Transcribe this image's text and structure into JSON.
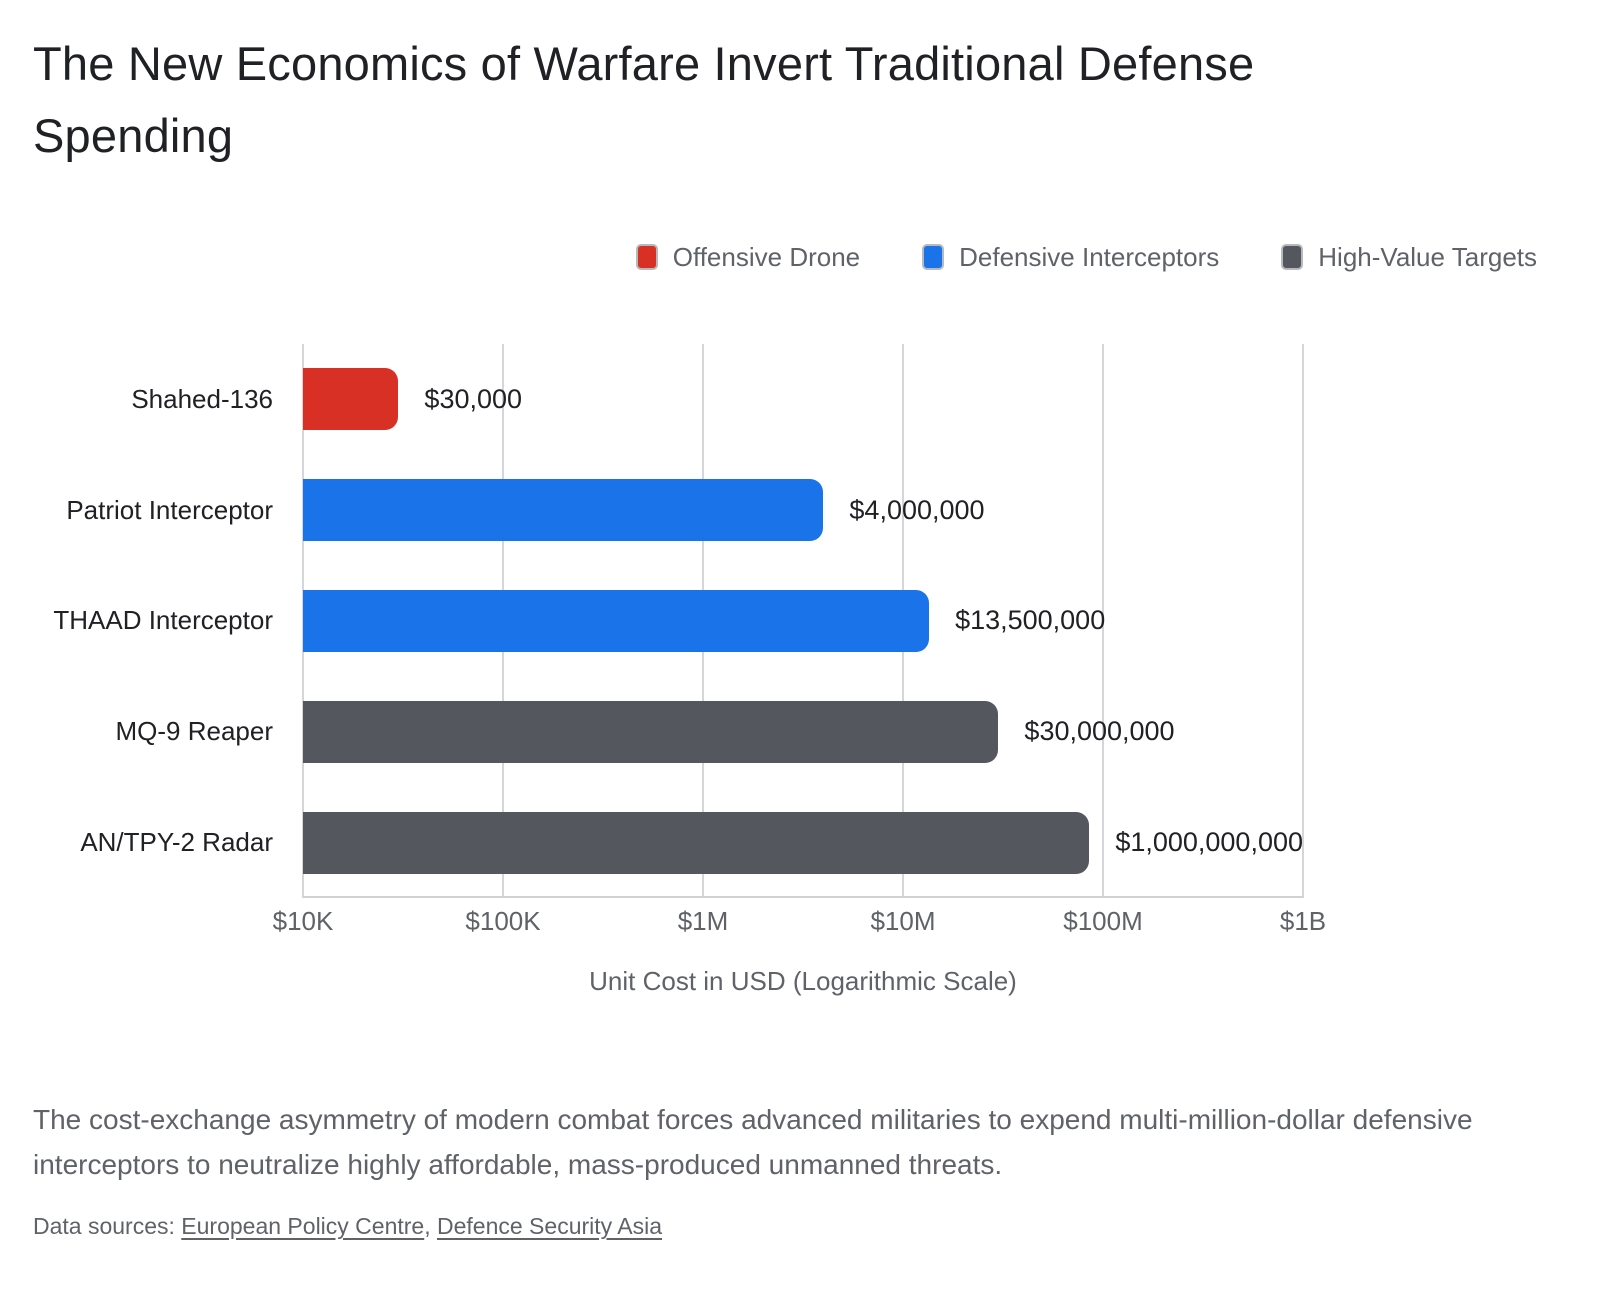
{
  "title": "The New Economics of Warfare Invert Traditional Defense Spending",
  "legend": [
    {
      "label": "Offensive Drone",
      "color": "#d93025"
    },
    {
      "label": "Defensive Interceptors",
      "color": "#1a73e8"
    },
    {
      "label": "High-Value Targets",
      "color": "#54575e"
    }
  ],
  "chart_data": {
    "type": "bar",
    "orientation": "horizontal",
    "scale": "logarithmic",
    "title": "The New Economics of Warfare Invert Traditional Defense Spending",
    "categories": [
      "Shahed-136",
      "Patriot Interceptor",
      "THAAD Interceptor",
      "MQ-9 Reaper",
      "AN/TPY-2 Radar"
    ],
    "values": [
      30000,
      4000000,
      13500000,
      30000000,
      1000000000
    ],
    "value_labels": [
      "$30,000",
      "$4,000,000",
      "$13,500,000",
      "$30,000,000",
      "$1,000,000,000"
    ],
    "series_assignment": [
      "Offensive Drone",
      "Defensive Interceptors",
      "Defensive Interceptors",
      "High-Value Targets",
      "High-Value Targets"
    ],
    "bar_colors": [
      "#d93025",
      "#1a73e8",
      "#1a73e8",
      "#54575e",
      "#54575e"
    ],
    "xlabel": "Unit Cost in USD (Logarithmic Scale)",
    "ylabel": "",
    "x_ticks": [
      "$10K",
      "$100K",
      "$1M",
      "$10M",
      "$100M",
      "$1B"
    ],
    "x_tick_values": [
      10000,
      100000,
      1000000,
      10000000,
      100000000,
      1000000000
    ],
    "xlim": [
      10000,
      1000000000
    ],
    "grid": "vertical",
    "legend_position": "top-right"
  },
  "caption": "The cost-exchange asymmetry of modern combat forces advanced militaries to expend multi-million-dollar defensive interceptors to neutralize highly affordable, mass-produced unmanned threats.",
  "sources": {
    "prefix": "Data sources: ",
    "separator": ", ",
    "links": [
      {
        "label": "European Policy Centre"
      },
      {
        "label": "Defence Security Asia"
      }
    ]
  }
}
